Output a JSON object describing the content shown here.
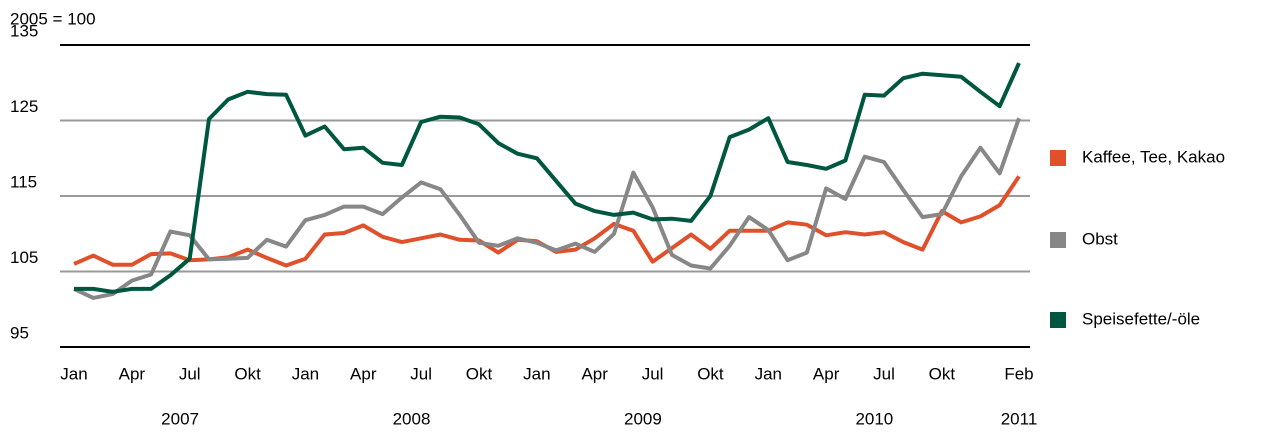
{
  "chart_data": {
    "type": "line",
    "y_axis_label": "2005 = 100",
    "categories": [
      "Jan",
      null,
      null,
      "Apr",
      null,
      null,
      "Jul",
      null,
      null,
      "Okt",
      null,
      null,
      "Jan",
      null,
      null,
      "Apr",
      null,
      null,
      "Jul",
      null,
      null,
      "Okt",
      null,
      null,
      "Jan",
      null,
      null,
      "Apr",
      null,
      null,
      "Jul",
      null,
      null,
      "Okt",
      null,
      null,
      "Jan",
      null,
      null,
      "Apr",
      null,
      null,
      "Jul",
      null,
      null,
      "Okt",
      null,
      null,
      null,
      "Feb"
    ],
    "year_labels": [
      "2007",
      "2008",
      "2009",
      "2010",
      "2011"
    ],
    "ylim": [
      95,
      135
    ],
    "yticks": [
      95,
      105,
      115,
      125,
      135
    ],
    "grid": true,
    "legend": "right",
    "series": [
      {
        "name": "Kaffee, Tee, Kakao",
        "color": "#e0502a",
        "values": [
          106,
          107.1,
          105.9,
          105.9,
          107.3,
          107.4,
          106.5,
          106.6,
          106.9,
          107.9,
          106.8,
          105.8,
          106.7,
          109.9,
          110.1,
          111.1,
          109.6,
          108.9,
          109.4,
          109.9,
          109.2,
          109.1,
          107.5,
          109.2,
          109,
          107.6,
          107.9,
          109.4,
          111.3,
          110.4,
          106.3,
          108.1,
          109.9,
          108,
          110.4,
          110.4,
          110.4,
          111.5,
          111.2,
          109.8,
          110.2,
          109.9,
          110.2,
          108.9,
          107.9,
          113,
          111.5,
          112.3,
          113.8,
          117.6
        ]
      },
      {
        "name": "Obst",
        "color": "#878787",
        "values": [
          102.7,
          101.5,
          102,
          103.8,
          104.6,
          110.3,
          109.8,
          106.6,
          106.7,
          106.8,
          109.2,
          108.3,
          111.8,
          112.5,
          113.6,
          113.6,
          112.6,
          114.8,
          116.8,
          115.9,
          112.5,
          108.8,
          108.4,
          109.4,
          108.8,
          107.8,
          108.7,
          107.6,
          110,
          118.1,
          113.5,
          107.2,
          105.8,
          105.4,
          108.4,
          112.2,
          110.5,
          106.5,
          107.5,
          116,
          114.6,
          120.2,
          119.5,
          115.8,
          112.2,
          112.6,
          117.6,
          121.4,
          118,
          125.3
        ]
      },
      {
        "name": "Speisefette/-öle",
        "color": "#00573f",
        "values": [
          102.7,
          102.7,
          102.3,
          102.7,
          102.7,
          104.5,
          106.7,
          125.2,
          127.8,
          128.8,
          128.5,
          128.4,
          123,
          124.2,
          121.2,
          121.4,
          119.4,
          119.1,
          124.8,
          125.5,
          125.4,
          124.5,
          122,
          120.6,
          120,
          117,
          114,
          113,
          112.5,
          112.8,
          111.9,
          112,
          111.7,
          115,
          122.8,
          123.8,
          125.3,
          119.5,
          119.1,
          118.6,
          119.7,
          128.4,
          128.3,
          130.6,
          131.2,
          131,
          130.8,
          128.8,
          126.9,
          132.6
        ]
      }
    ]
  }
}
